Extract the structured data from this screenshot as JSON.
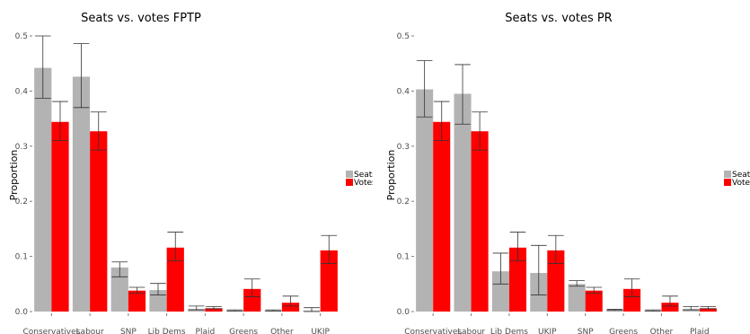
{
  "legend": [
    {
      "label": "Seats",
      "color": "#b3b3b3"
    },
    {
      "label": "Votes",
      "color": "#ff0000"
    }
  ],
  "chart_data": [
    {
      "type": "bar",
      "title": "Seats vs. votes FPTP",
      "xlabel": "",
      "ylabel": "Proportion",
      "ylim": [
        0,
        0.5
      ],
      "yticks": [
        "0.0",
        "0.1",
        "0.2",
        "0.3",
        "0.4",
        "0.5"
      ],
      "legend_position": "right",
      "categories": [
        "Conservatives",
        "Labour",
        "SNP",
        "Lib Dems",
        "Plaid",
        "Greens",
        "Other",
        "UKIP"
      ],
      "series": [
        {
          "name": "Seats",
          "color": "#b3b3b3",
          "values": [
            0.442,
            0.426,
            0.08,
            0.039,
            0.005,
            0.002,
            0.002,
            0.002
          ],
          "err_low": [
            0.387,
            0.37,
            0.063,
            0.03,
            0.003,
            0.001,
            0.001,
            0.0
          ],
          "err_high": [
            0.5,
            0.486,
            0.09,
            0.051,
            0.01,
            0.003,
            0.003,
            0.007
          ]
        },
        {
          "name": "Votes",
          "color": "#ff0000",
          "values": [
            0.344,
            0.327,
            0.038,
            0.116,
            0.006,
            0.041,
            0.016,
            0.111
          ],
          "err_low": [
            0.31,
            0.293,
            0.033,
            0.092,
            0.005,
            0.027,
            0.01,
            0.087
          ],
          "err_high": [
            0.381,
            0.362,
            0.044,
            0.144,
            0.009,
            0.059,
            0.028,
            0.138
          ]
        }
      ]
    },
    {
      "type": "bar",
      "title": "Seats vs. votes PR",
      "xlabel": "",
      "ylabel": "Proportion",
      "ylim": [
        0,
        0.5
      ],
      "yticks": [
        "0.0",
        "0.1",
        "0.2",
        "0.3",
        "0.4",
        "0.5"
      ],
      "legend_position": "right",
      "categories": [
        "Conservatives",
        "Labour",
        "Lib Dems",
        "UKIP",
        "SNP",
        "Greens",
        "Other",
        "Plaid"
      ],
      "series": [
        {
          "name": "Seats",
          "color": "#b3b3b3",
          "values": [
            0.403,
            0.395,
            0.073,
            0.07,
            0.05,
            0.003,
            0.002,
            0.005
          ],
          "err_low": [
            0.353,
            0.34,
            0.05,
            0.03,
            0.046,
            0.002,
            0.001,
            0.003
          ],
          "err_high": [
            0.455,
            0.448,
            0.106,
            0.12,
            0.056,
            0.004,
            0.003,
            0.009
          ]
        },
        {
          "name": "Votes",
          "color": "#ff0000",
          "values": [
            0.344,
            0.327,
            0.116,
            0.111,
            0.038,
            0.041,
            0.016,
            0.006
          ],
          "err_low": [
            0.31,
            0.293,
            0.092,
            0.087,
            0.033,
            0.027,
            0.01,
            0.005
          ],
          "err_high": [
            0.381,
            0.362,
            0.144,
            0.138,
            0.044,
            0.059,
            0.028,
            0.009
          ]
        }
      ]
    }
  ]
}
